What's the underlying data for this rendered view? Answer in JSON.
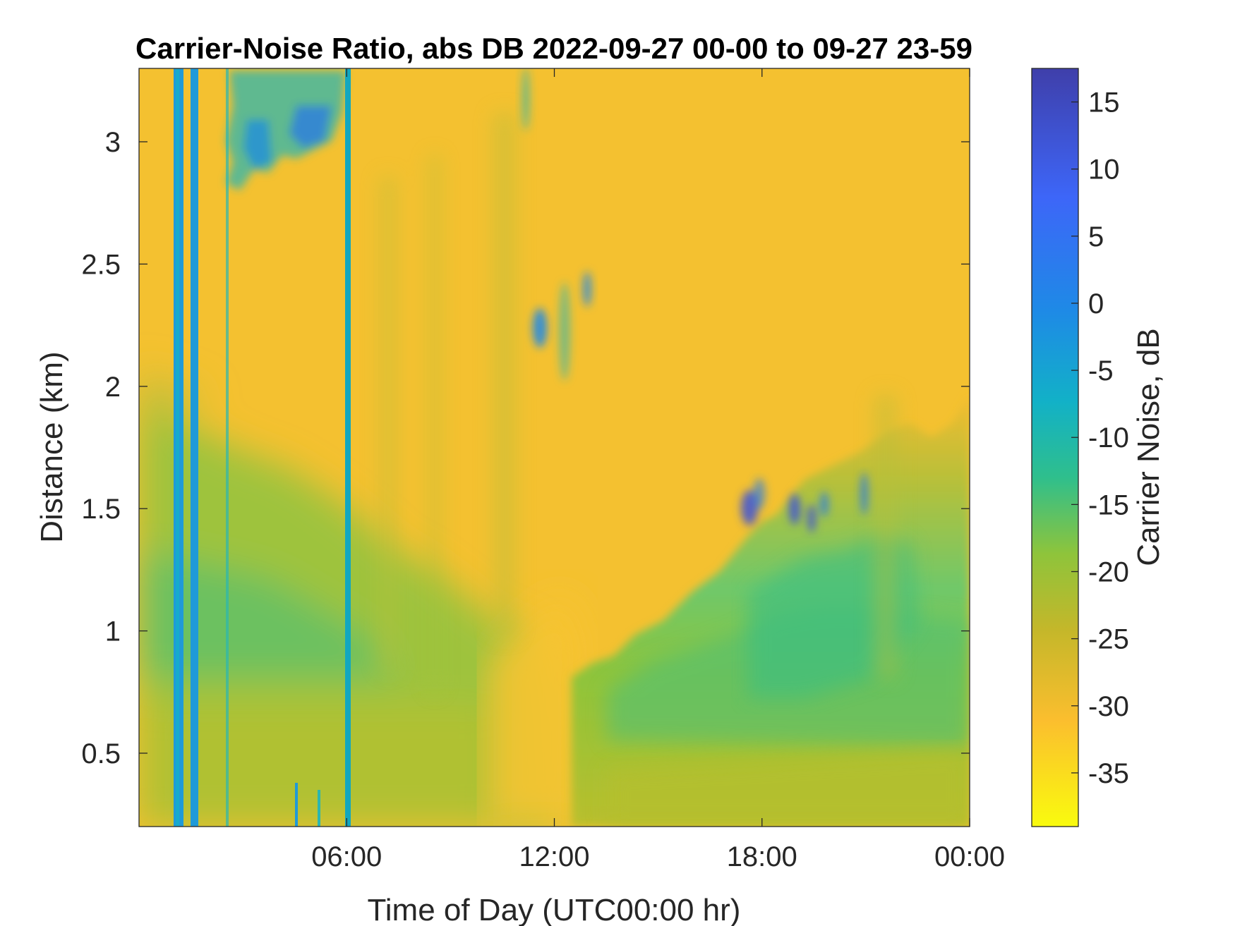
{
  "chart_data": {
    "type": "heatmap",
    "title": "Carrier-Noise Ratio, abs DB 2022-09-27 00-00 to 09-27 23-59",
    "xlabel": "Time of Day (UTC00:00 hr)",
    "ylabel": "Distance (km)",
    "x_unit": "hour of day",
    "xlim": [
      0,
      24
    ],
    "x_ticks": [
      6,
      12,
      18,
      24
    ],
    "x_tick_labels": [
      "06:00",
      "12:00",
      "18:00",
      "00:00"
    ],
    "ylim": [
      0.2,
      3.3
    ],
    "y_ticks": [
      0.5,
      1,
      1.5,
      2,
      2.5,
      3
    ],
    "y_tick_labels": [
      "0.5",
      "1",
      "1.5",
      "2",
      "2.5",
      "3"
    ],
    "colorbar": {
      "label": "Carrier Noise, dB",
      "range": [
        -39,
        17.5
      ],
      "ticks": [
        15,
        10,
        5,
        0,
        -5,
        -10,
        -15,
        -20,
        -25,
        -30,
        -35
      ],
      "tick_labels": [
        "15",
        "10",
        "5",
        "0",
        "-5",
        "-10",
        "-15",
        "-20",
        "-25",
        "-30",
        "-35"
      ],
      "colormap": "parula",
      "colors_low_to_high": [
        "#f9fb0e",
        "#fbbe2e",
        "#c4b72a",
        "#8ec43b",
        "#2fbf8c",
        "#12b1c7",
        "#1e8ae6",
        "#3d66f8",
        "#3f3faa"
      ]
    },
    "grid": false,
    "description_regions": [
      {
        "feature": "low-altitude layer",
        "x_range": [
          0,
          24
        ],
        "y_range": [
          0.2,
          1.9
        ],
        "approx_db": -18
      },
      {
        "feature": "upper clear air",
        "x_range": [
          0,
          24
        ],
        "y_range": [
          1.9,
          3.3
        ],
        "approx_db": -30
      },
      {
        "feature": "vertical stripe",
        "x": 1.2,
        "approx_db": -8
      },
      {
        "feature": "vertical stripe",
        "x": 1.6,
        "approx_db": -8
      },
      {
        "feature": "vertical stripe",
        "x": 6.05,
        "approx_db": -10
      },
      {
        "feature": "high cloud",
        "x_range": [
          2.6,
          5.9
        ],
        "y_range": [
          2.75,
          3.3
        ],
        "approx_db": -5
      },
      {
        "feature": "cloud patch",
        "x_range": [
          11.4,
          13.2
        ],
        "y_range": [
          1.85,
          2.45
        ],
        "approx_db": -8
      },
      {
        "feature": "growing boundary layer top",
        "x": [
          13,
          14,
          15,
          16,
          17,
          18,
          19,
          20,
          21,
          22,
          23,
          24
        ],
        "y": [
          0.8,
          0.9,
          1.0,
          1.15,
          1.35,
          1.6,
          1.7,
          1.65,
          1.6,
          1.65,
          1.8,
          1.9
        ]
      },
      {
        "feature": "embedded high-SNR cells",
        "x_range": [
          17.3,
          21.0
        ],
        "y_range": [
          1.35,
          1.6
        ],
        "approx_db": 8
      }
    ]
  }
}
